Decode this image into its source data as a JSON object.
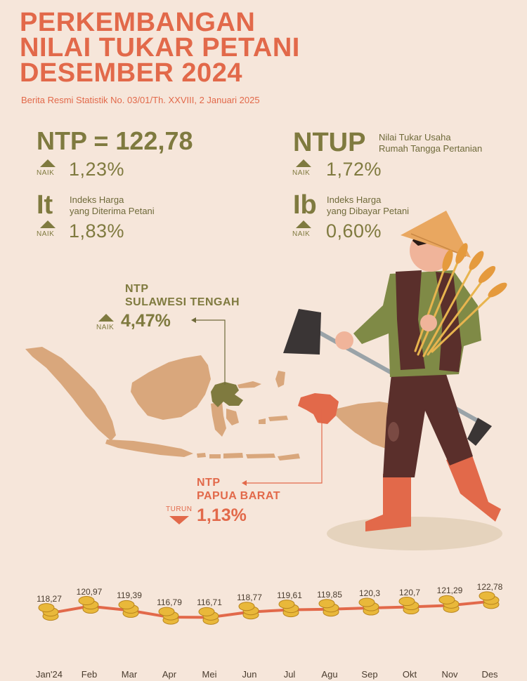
{
  "header": {
    "title_line1": "PERKEMBANGAN",
    "title_line2": "NILAI TUKAR PETANI",
    "title_line3": "DESEMBER 2024",
    "subtitle": "Berita Resmi Statistik No. 03/01/Th. XXVIII, 2 Januari 2025"
  },
  "ntp": {
    "label": "NTP = 122,78",
    "direction": "NAIK",
    "change": "1,23%"
  },
  "ntup": {
    "code": "NTUP",
    "desc_line1": "Nilai Tukar Usaha",
    "desc_line2": "Rumah Tangga Pertanian",
    "direction": "NAIK",
    "change": "1,72%"
  },
  "it": {
    "code": "It",
    "desc_line1": "Indeks Harga",
    "desc_line2": "yang Diterima Petani",
    "direction": "NAIK",
    "change": "1,83%"
  },
  "ib": {
    "code": "Ib",
    "desc_line1": "Indeks Harga",
    "desc_line2": "yang Dibayar Petani",
    "direction": "NAIK",
    "change": "0,60%"
  },
  "sulteng": {
    "line1": "NTP",
    "line2": "SULAWESI TENGAH",
    "direction": "NAIK",
    "change": "4,47%"
  },
  "papua": {
    "line1": "NTP",
    "line2": "PAPUA BARAT",
    "direction": "TURUN",
    "change": "1,13%"
  },
  "colors": {
    "background": "#f6e6da",
    "accent": "#e2694a",
    "olive": "#7f7a3f",
    "map": "#d9a77c",
    "sulteng": "#7f7a3f",
    "papua": "#e2694a",
    "line": "#e2694a",
    "coin": "#e9b83a"
  },
  "chart_data": {
    "type": "line",
    "categories": [
      "Jan'24",
      "Feb",
      "Mar",
      "Apr",
      "Mei",
      "Jun",
      "Jul",
      "Agu",
      "Sep",
      "Okt",
      "Nov",
      "Des"
    ],
    "value_labels": [
      "118,27",
      "120,97",
      "119,39",
      "116,79",
      "116,71",
      "118,77",
      "119,61",
      "119,85",
      "120,3",
      "120,7",
      "121,29",
      "122,78"
    ],
    "values": [
      118.27,
      120.97,
      119.39,
      116.79,
      116.71,
      118.77,
      119.61,
      119.85,
      120.3,
      120.7,
      121.29,
      122.78
    ],
    "marker": "coin-stack-icon"
  }
}
